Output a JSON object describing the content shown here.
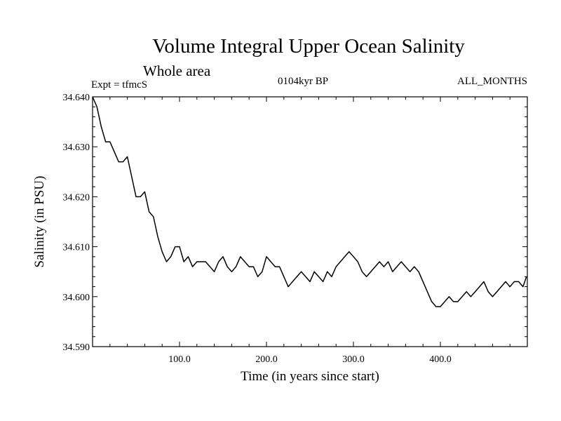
{
  "chart_data": {
    "type": "line",
    "title": "Volume Integral Upper Ocean Salinity",
    "subtitle": "Whole area",
    "header_left": "Expt = tfmcS",
    "header_center": "0104kyr BP",
    "header_right": "ALL_MONTHS",
    "xlabel": "Time (in years since start)",
    "ylabel": "Salinity (in PSU)",
    "xlim": [
      0,
      500
    ],
    "ylim": [
      34.59,
      34.64
    ],
    "x_ticks": [
      100,
      200,
      300,
      400
    ],
    "x_tick_labels": [
      "100.0",
      "200.0",
      "300.0",
      "400.0"
    ],
    "y_ticks": [
      34.59,
      34.6,
      34.61,
      34.62,
      34.63,
      34.64
    ],
    "y_tick_labels": [
      "34.590",
      "34.600",
      "34.610",
      "34.620",
      "34.630",
      "34.640"
    ],
    "grid": false,
    "series": [
      {
        "x": [
          0,
          5,
          10,
          15,
          20,
          25,
          30,
          35,
          40,
          45,
          50,
          55,
          60,
          65,
          70,
          75,
          80,
          85,
          90,
          95,
          100,
          105,
          110,
          115,
          120,
          125,
          130,
          135,
          140,
          145,
          150,
          155,
          160,
          165,
          170,
          175,
          180,
          185,
          190,
          195,
          200,
          205,
          210,
          215,
          220,
          225,
          230,
          235,
          240,
          245,
          250,
          255,
          260,
          265,
          270,
          275,
          280,
          285,
          290,
          295,
          300,
          305,
          310,
          315,
          320,
          325,
          330,
          335,
          340,
          345,
          350,
          355,
          360,
          365,
          370,
          375,
          380,
          385,
          390,
          395,
          400,
          405,
          410,
          415,
          420,
          425,
          430,
          435,
          440,
          445,
          450,
          455,
          460,
          465,
          470,
          475,
          480,
          485,
          490,
          495,
          499
        ],
        "values": [
          34.64,
          34.638,
          34.634,
          34.631,
          34.631,
          34.629,
          34.627,
          34.627,
          34.628,
          34.624,
          34.62,
          34.62,
          34.621,
          34.617,
          34.616,
          34.612,
          34.609,
          34.607,
          34.608,
          34.61,
          34.61,
          34.607,
          34.608,
          34.606,
          34.607,
          34.607,
          34.607,
          34.606,
          34.605,
          34.607,
          34.608,
          34.606,
          34.605,
          34.606,
          34.608,
          34.607,
          34.606,
          34.606,
          34.604,
          34.605,
          34.608,
          34.607,
          34.606,
          34.606,
          34.604,
          34.602,
          34.603,
          34.604,
          34.605,
          34.604,
          34.603,
          34.605,
          34.604,
          34.603,
          34.605,
          34.604,
          34.606,
          34.607,
          34.608,
          34.609,
          34.608,
          34.607,
          34.605,
          34.604,
          34.605,
          34.606,
          34.607,
          34.606,
          34.607,
          34.605,
          34.606,
          34.607,
          34.606,
          34.605,
          34.606,
          34.605,
          34.603,
          34.601,
          34.599,
          34.598,
          34.598,
          34.599,
          34.6,
          34.599,
          34.599,
          34.6,
          34.601,
          34.6,
          34.601,
          34.602,
          34.603,
          34.601,
          34.6,
          34.601,
          34.602,
          34.603,
          34.602,
          34.603,
          34.603,
          34.602,
          34.604
        ]
      }
    ]
  }
}
